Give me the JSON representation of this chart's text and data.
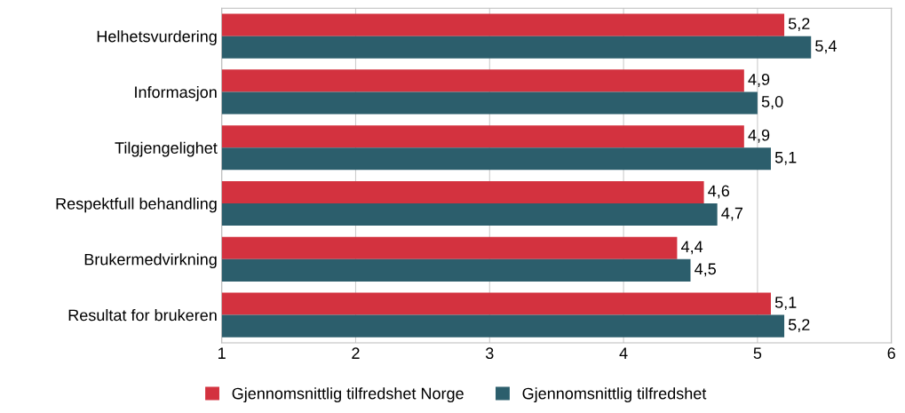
{
  "chart_data": {
    "type": "bar",
    "orientation": "horizontal",
    "categories": [
      "Helhetsvurdering",
      "Informasjon",
      "Tilgjengelighet",
      "Respektfull behandling",
      "Brukermedvirkning",
      "Resultat for brukeren"
    ],
    "series": [
      {
        "name": "Gjennomsnittlig tilfredshet Norge",
        "color": "#d3323f",
        "values": [
          5.2,
          4.9,
          4.9,
          4.6,
          4.4,
          5.1
        ],
        "value_labels": [
          "5,2",
          "4,9",
          "4,9",
          "4,6",
          "4,4",
          "5,1"
        ]
      },
      {
        "name": "Gjennomsnittlig tilfredshet",
        "color": "#2c5e6c",
        "values": [
          5.4,
          5.0,
          5.1,
          4.7,
          4.5,
          5.2
        ],
        "value_labels": [
          "5,4",
          "5,0",
          "5,1",
          "4,7",
          "4,5",
          "5,2"
        ]
      }
    ],
    "xlim": [
      1,
      6
    ],
    "xticks": [
      1,
      2,
      3,
      4,
      5,
      6
    ],
    "grid": "x",
    "legend": "bottom"
  }
}
